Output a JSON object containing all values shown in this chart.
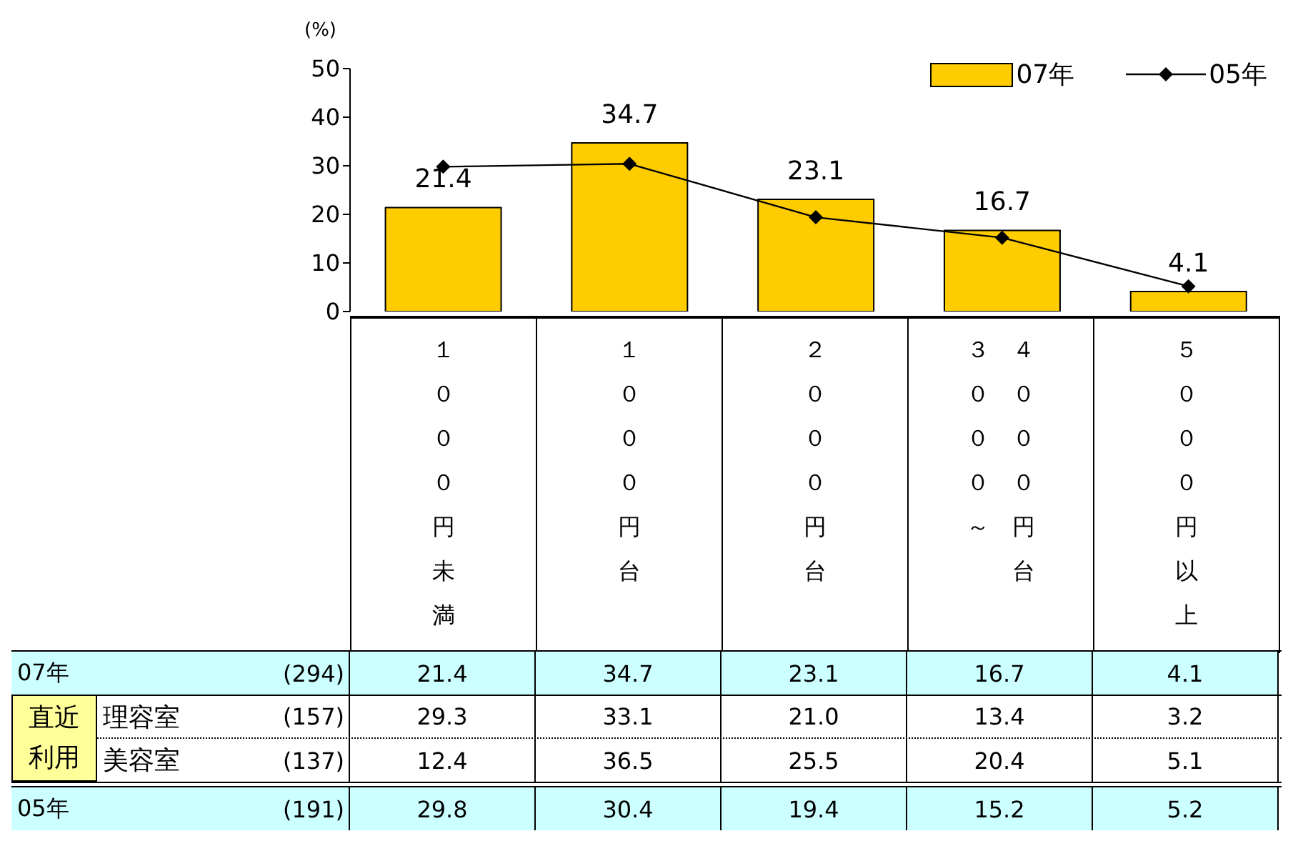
{
  "chart_data": {
    "type": "bar",
    "ylabel": "(%)",
    "categories": [
      "１０００円未満",
      "１０００円台",
      "２０００円台",
      "３０００～４０００円台",
      "５０００円以上"
    ],
    "series": [
      {
        "name": "07年",
        "type": "bar",
        "color": "#ffcc00",
        "values": [
          21.4,
          34.7,
          23.1,
          16.7,
          4.1
        ],
        "value_labels": [
          "21.4",
          "34.7",
          "23.1",
          "16.7",
          "4.1"
        ]
      },
      {
        "name": "05年",
        "type": "line",
        "color": "#000000",
        "values": [
          29.8,
          30.4,
          19.4,
          15.2,
          5.2
        ]
      }
    ],
    "ylim": [
      0,
      50
    ],
    "yticks": [
      0,
      10,
      20,
      30,
      40,
      50
    ],
    "grid": false,
    "legend": "top right",
    "marker": "diamond",
    "line_style": "solid",
    "data_labels": true,
    "annotations": [
      "(294)",
      "(191)",
      "直近利用",
      "理容室",
      "(157)",
      "29.3",
      "33.1",
      "21.0",
      "13.4",
      "3.2",
      "美容室",
      "(137)",
      "12.4",
      "36.5",
      "25.5",
      "20.4",
      "5.1",
      "21.4",
      "34.7",
      "23.1",
      "16.7",
      "4.1"
    ]
  }
}
